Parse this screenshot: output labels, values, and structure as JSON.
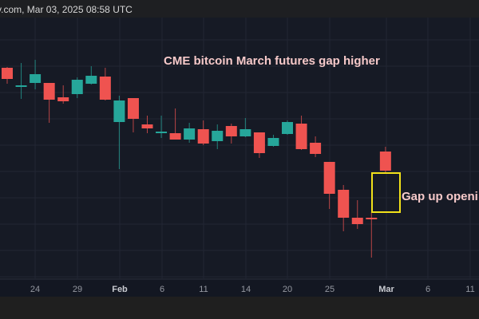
{
  "header": {
    "source_text": "v.com, Mar 03, 2025 08:58 UTC"
  },
  "colors": {
    "up": "#26a69a",
    "down": "#ef5350",
    "background": "#161a25",
    "annotation_text": "#f6c9c9",
    "highlight_box": "#f2e11a"
  },
  "chart_data": {
    "type": "candlestick",
    "title": "CME bitcoin March futures gap higher",
    "annotations": [
      {
        "text": "Gap up openi",
        "target_candle": 27,
        "box": "gap highlight"
      }
    ],
    "y_units": "relative price (no axis labels shown)",
    "x_tick_labels": [
      "24",
      "29",
      "Feb",
      "6",
      "11",
      "14",
      "20",
      "25",
      "Mar",
      "6",
      "11"
    ],
    "x_tick_bold": [
      false,
      false,
      true,
      false,
      false,
      false,
      false,
      false,
      true,
      false,
      false
    ],
    "candles": [
      {
        "o": 315,
        "h": 316,
        "l": 295,
        "c": 301
      },
      {
        "o": 293,
        "h": 321,
        "l": 276,
        "c": 293
      },
      {
        "o": 296,
        "h": 325,
        "l": 288,
        "c": 307
      },
      {
        "o": 296,
        "h": 296,
        "l": 246,
        "c": 275
      },
      {
        "o": 278,
        "h": 293,
        "l": 270,
        "c": 273
      },
      {
        "o": 282,
        "h": 303,
        "l": 277,
        "c": 300
      },
      {
        "o": 295,
        "h": 317,
        "l": 294,
        "c": 305
      },
      {
        "o": 304,
        "h": 315,
        "l": 274,
        "c": 275
      },
      {
        "o": 247,
        "h": 280,
        "l": 188,
        "c": 274
      },
      {
        "o": 277,
        "h": 277,
        "l": 234,
        "c": 251
      },
      {
        "o": 244,
        "h": 255,
        "l": 233,
        "c": 239
      },
      {
        "o": 233,
        "h": 255,
        "l": 227,
        "c": 235
      },
      {
        "o": 233,
        "h": 264,
        "l": 225,
        "c": 225
      },
      {
        "o": 225,
        "h": 246,
        "l": 221,
        "c": 239
      },
      {
        "o": 238,
        "h": 249,
        "l": 218,
        "c": 220
      },
      {
        "o": 223,
        "h": 244,
        "l": 213,
        "c": 236
      },
      {
        "o": 242,
        "h": 245,
        "l": 220,
        "c": 229
      },
      {
        "o": 229,
        "h": 252,
        "l": 228,
        "c": 238
      },
      {
        "o": 234,
        "h": 234,
        "l": 202,
        "c": 208
      },
      {
        "o": 217,
        "h": 231,
        "l": 216,
        "c": 227
      },
      {
        "o": 232,
        "h": 249,
        "l": 231,
        "c": 247
      },
      {
        "o": 245,
        "h": 255,
        "l": 212,
        "c": 213
      },
      {
        "o": 221,
        "h": 229,
        "l": 203,
        "c": 207
      },
      {
        "o": 197,
        "h": 197,
        "l": 138,
        "c": 157
      },
      {
        "o": 162,
        "h": 168,
        "l": 110,
        "c": 127
      },
      {
        "o": 127,
        "h": 149,
        "l": 113,
        "c": 119
      },
      {
        "o": 127,
        "h": 134,
        "l": 77,
        "c": 126
      },
      {
        "o": 210,
        "h": 216,
        "l": 182,
        "c": 186
      }
    ]
  }
}
